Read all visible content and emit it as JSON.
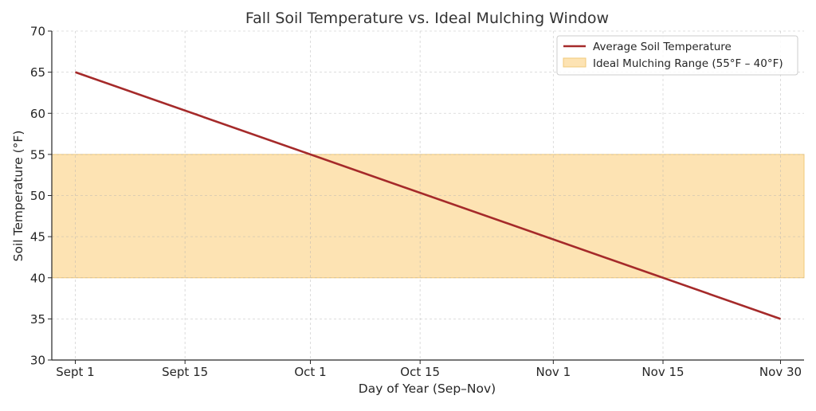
{
  "chart_data": {
    "type": "line",
    "title": "Fall Soil Temperature vs. Ideal Mulching Window",
    "xlabel": "Day of Year (Sep–Nov)",
    "ylabel": "Soil Temperature (°F)",
    "ylim": [
      30,
      70
    ],
    "yticks": [
      30,
      35,
      40,
      45,
      50,
      55,
      60,
      65,
      70
    ],
    "x_categories": [
      "Sept 1",
      "Sept 15",
      "Oct 1",
      "Oct 15",
      "Nov 1",
      "Nov 15",
      "Nov 30"
    ],
    "x_day_of_year": [
      244,
      258,
      274,
      288,
      305,
      319,
      334
    ],
    "x_range_day_of_year": [
      241,
      337
    ],
    "grid": true,
    "legend_position": "top-right",
    "series": [
      {
        "name": "Average Soil Temperature",
        "kind": "line",
        "color": "#a52a2a",
        "x_day_of_year": [
          244,
          334
        ],
        "values": [
          65,
          35
        ]
      }
    ],
    "bands": [
      {
        "name": "Ideal Mulching Range (55°F – 40°F)",
        "kind": "band",
        "color": "#fde3b3",
        "edge_color": "#f1c97a",
        "y_low": 40,
        "y_high": 55
      }
    ]
  }
}
